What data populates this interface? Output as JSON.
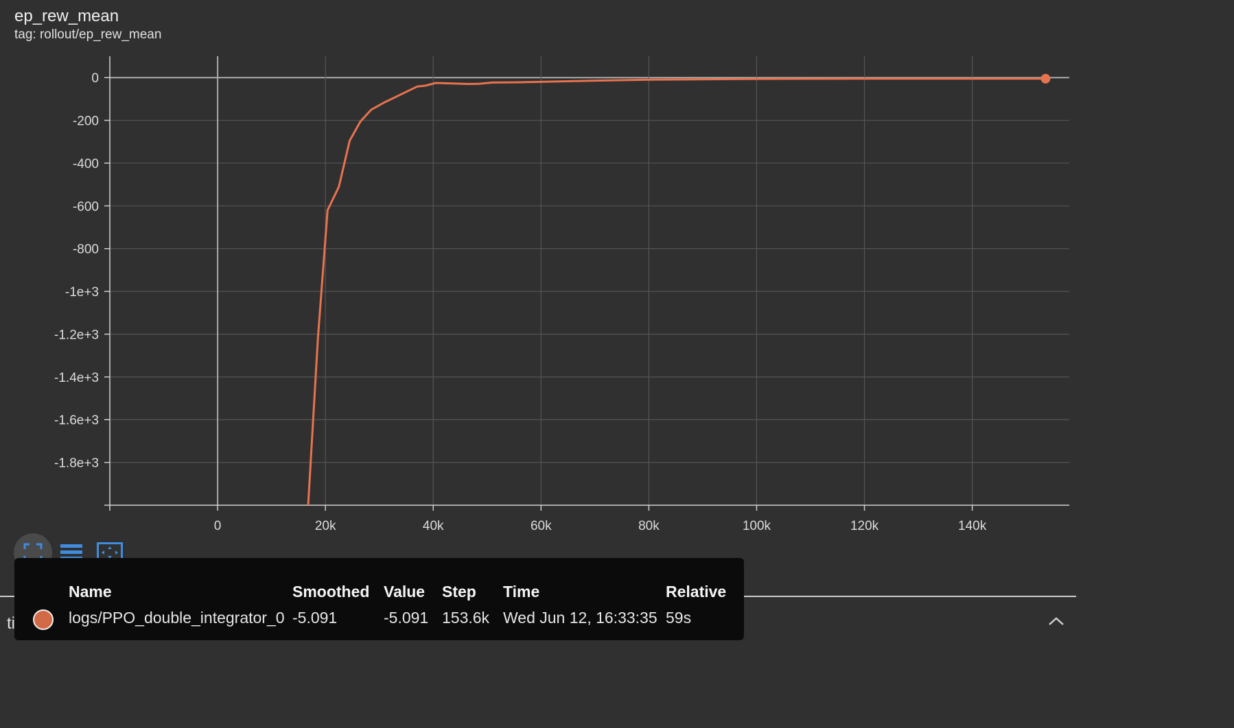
{
  "card": {
    "title": "ep_rew_mean",
    "subtitle": "tag: rollout/ep_rew_mean"
  },
  "colors": {
    "background": "#303030",
    "series": "#e8734f",
    "grid": "#555555",
    "zero_line": "#aaaaaa",
    "toolbar_accent": "#3f8de0"
  },
  "toolbar": {
    "buttons": [
      "fullscreen-icon",
      "lines-icon",
      "fit-domain-icon"
    ]
  },
  "footer": {
    "x_axis_label": "time"
  },
  "tooltip": {
    "headers": {
      "name": "Name",
      "smoothed": "Smoothed",
      "value": "Value",
      "step": "Step",
      "time": "Time",
      "relative": "Relative"
    },
    "row": {
      "name": "logs/PPO_double_integrator_0",
      "smoothed": "-5.091",
      "value": "-5.091",
      "step": "153.6k",
      "time": "Wed Jun 12, 16:33:35",
      "relative": "59s"
    }
  },
  "chart_data": {
    "type": "line",
    "title": "ep_rew_mean",
    "subtitle": "tag: rollout/ep_rew_mean",
    "xlim": [
      -20000,
      158000
    ],
    "ylim": [
      -2000,
      100
    ],
    "x_ticks": [
      0,
      20000,
      40000,
      60000,
      80000,
      100000,
      120000,
      140000
    ],
    "x_tick_labels": [
      "0",
      "20k",
      "40k",
      "60k",
      "80k",
      "100k",
      "120k",
      "140k"
    ],
    "y_ticks": [
      0,
      -200,
      -400,
      -600,
      -800,
      -1000,
      -1200,
      -1400,
      -1600,
      -1800,
      -2000
    ],
    "y_tick_labels": [
      "0",
      "-200",
      "-400",
      "-600",
      "-800",
      "-1e+3",
      "-1.2e+3",
      "-1.4e+3",
      "-1.6e+3",
      "-1.8e+3",
      ""
    ],
    "grid": true,
    "series": [
      {
        "name": "logs/PPO_double_integrator_0",
        "x": [
          16800,
          18600,
          20400,
          22500,
          24500,
          26500,
          28500,
          31000,
          33500,
          37000,
          38500,
          40500,
          43000,
          46500,
          48500,
          51000,
          55000,
          60000,
          70000,
          80000,
          100000,
          120000,
          140000,
          153600
        ],
        "y": [
          -2000,
          -1220,
          -620,
          -510,
          -295,
          -205,
          -150,
          -115,
          -85,
          -42,
          -38,
          -25,
          -27,
          -30,
          -29,
          -23,
          -22,
          -20,
          -14,
          -10,
          -6,
          -5,
          -5,
          -5.091
        ]
      }
    ],
    "highlight_point": {
      "x": 153600,
      "y": -5.091
    }
  }
}
